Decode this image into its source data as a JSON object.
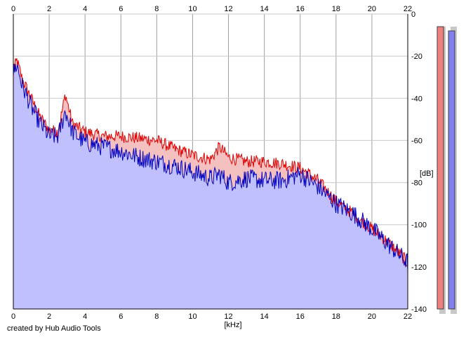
{
  "chart_data": {
    "type": "area",
    "xlabel": "[kHz]",
    "ylabel": "[dB]",
    "xlim": [
      0,
      22
    ],
    "ylim": [
      -140,
      0
    ],
    "x_ticks": [
      0,
      2,
      4,
      6,
      8,
      10,
      12,
      14,
      16,
      18,
      20,
      22
    ],
    "y_ticks": [
      0,
      -20,
      -40,
      -60,
      -80,
      -100,
      -120,
      -140
    ],
    "grid": true,
    "x": [
      0,
      0.2,
      0.5,
      1,
      1.5,
      2,
      2.5,
      2.9,
      3.3,
      4,
      5,
      6,
      7,
      8,
      9,
      10,
      11,
      11.5,
      12,
      13,
      14,
      15,
      16,
      17,
      18,
      19,
      20,
      21,
      22
    ],
    "series": [
      {
        "color": "#e00000",
        "fill": "#f4c0c0",
        "values": [
          -27,
          -22,
          -31,
          -40,
          -49,
          -55,
          -56,
          -38,
          -52,
          -56,
          -58,
          -58,
          -59,
          -60,
          -64,
          -67,
          -69,
          -63,
          -68,
          -70,
          -70,
          -71,
          -73,
          -79,
          -89,
          -95,
          -102,
          -109,
          -118
        ]
      },
      {
        "color": "#0000c0",
        "fill": "#c0c0ff",
        "values": [
          -28,
          -24,
          -34,
          -44,
          -52,
          -58,
          -58,
          -46,
          -56,
          -61,
          -63,
          -65,
          -68,
          -70,
          -72,
          -75,
          -78,
          -76,
          -80,
          -78,
          -79,
          -79,
          -76,
          -82,
          -90,
          -95,
          -102,
          -110,
          -118
        ]
      }
    ],
    "level_meters": [
      {
        "channel": "left",
        "color": "#f08080",
        "level_db": -6
      },
      {
        "channel": "right",
        "color": "#8080f0",
        "level_db": -8
      }
    ]
  },
  "footer": "created by Hub Audio Tools"
}
